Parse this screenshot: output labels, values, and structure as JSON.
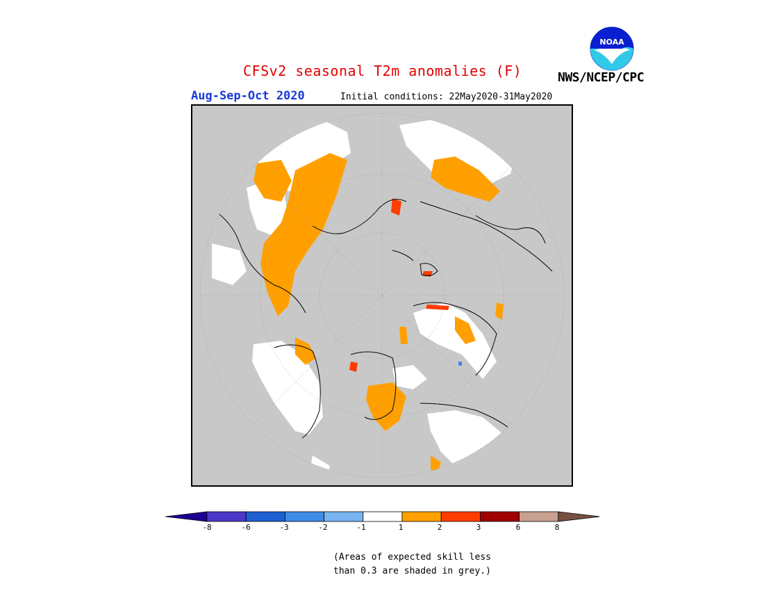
{
  "header": {
    "title": "CFSv2 seasonal T2m anomalies (F)",
    "agency": "NWS/NCEP/CPC",
    "logo_text": "NOAA",
    "season": "Aug-Sep-Oct 2020",
    "initial_conditions": "Initial conditions: 22May2020-31May2020"
  },
  "map": {
    "projection": "north polar stereographic",
    "background_color": "#c8c8c8",
    "outside_color": "#c8c8c8"
  },
  "legend": {
    "ticks": [
      "-8",
      "-6",
      "-3",
      "-2",
      "-1",
      "1",
      "2",
      "3",
      "6",
      "8"
    ],
    "colors": [
      "#1c0091",
      "#4b38c8",
      "#1e5fd2",
      "#3c8ce6",
      "#78b4f0",
      "#ffffff",
      "#ffa000",
      "#ff3c00",
      "#a00000",
      "#c8a090",
      "#785040"
    ],
    "note_line1": "(Areas of expected skill less",
    "note_line2": "than 0.3 are shaded in grey.)"
  }
}
